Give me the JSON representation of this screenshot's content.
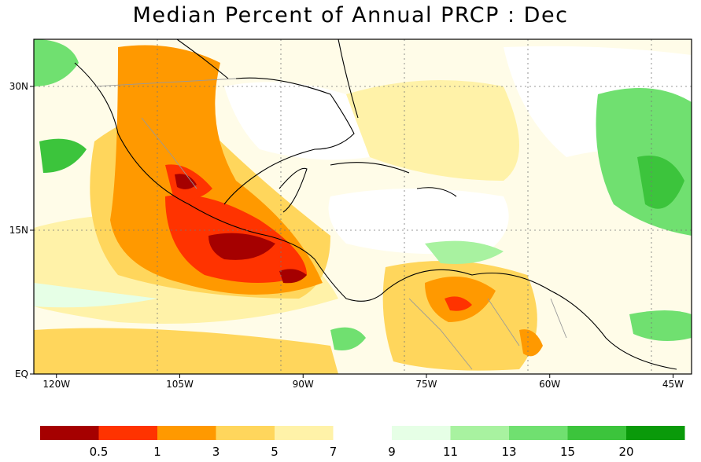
{
  "title": "Median Percent of Annual PRCP :   Dec",
  "axes": {
    "y_ticks": [
      {
        "label": "30N",
        "lat": 30
      },
      {
        "label": "15N",
        "lat": 15
      },
      {
        "label": "EQ",
        "lat": 0
      }
    ],
    "x_ticks": [
      {
        "label": "120W",
        "lon": -120
      },
      {
        "label": "105W",
        "lon": -105
      },
      {
        "label": "90W",
        "lon": -90
      },
      {
        "label": "75W",
        "lon": -75
      },
      {
        "label": "60W",
        "lon": -60
      },
      {
        "label": "45W",
        "lon": -45
      }
    ]
  },
  "colorbar": {
    "colors_left": [
      "#a50000",
      "#ff3300",
      "#ff9900",
      "#ffd65c",
      "#fff2a8"
    ],
    "colors_right": [
      "#e6ffe6",
      "#a8f2a0",
      "#70e070",
      "#3cc43c",
      "#0a9a0a"
    ],
    "labels": [
      "0.5",
      "1",
      "3",
      "5",
      "7",
      "9",
      "11",
      "13",
      "15",
      "20"
    ]
  }
}
